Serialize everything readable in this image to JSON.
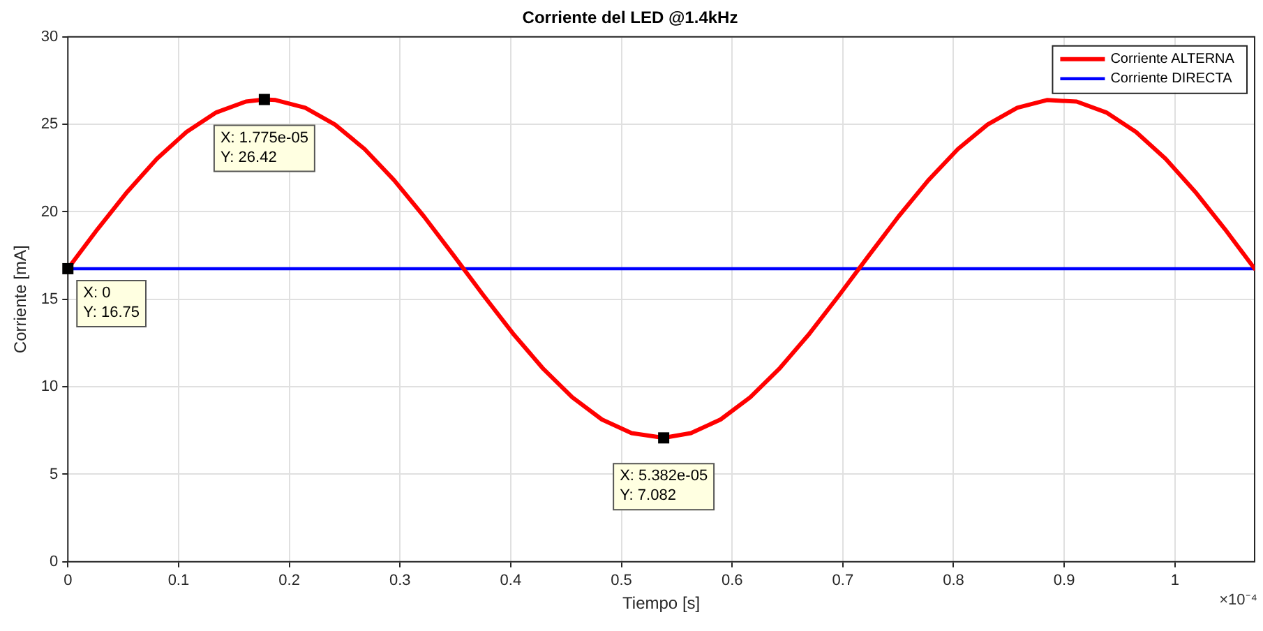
{
  "chart_data": {
    "type": "line",
    "title": "Corriente del LED @1.4kHz",
    "xlabel": "Tiempo [s]",
    "ylabel": "Corriente [mA]",
    "xlim": [
      0,
      1.072
    ],
    "ylim": [
      0,
      30
    ],
    "xticks": [
      0,
      0.1,
      0.2,
      0.3,
      0.4,
      0.5,
      0.6,
      0.7,
      0.8,
      0.9,
      1
    ],
    "yticks": [
      0,
      5,
      10,
      15,
      20,
      25,
      30
    ],
    "grid": true,
    "legend": "top right",
    "marker": "none",
    "line_style": "solid",
    "series": [
      {
        "name": "Corriente ALTERNA",
        "color": "#ff0000",
        "x": [
          0,
          0.0268,
          0.0536,
          0.0804,
          0.1072,
          0.134,
          0.1608,
          0.1775,
          0.1876,
          0.2144,
          0.2412,
          0.268,
          0.2948,
          0.3216,
          0.3484,
          0.3752,
          0.402,
          0.4288,
          0.4556,
          0.4824,
          0.5092,
          0.5382,
          0.5628,
          0.5896,
          0.6164,
          0.6432,
          0.67,
          0.6968,
          0.7236,
          0.7504,
          0.7772,
          0.804,
          0.8308,
          0.8576,
          0.8844,
          0.9112,
          0.938,
          0.9648,
          0.9916,
          1.0184,
          1.0452,
          1.072
        ],
        "values": [
          16.75,
          19.01,
          21.14,
          23.03,
          24.57,
          25.68,
          26.3,
          26.42,
          26.39,
          25.95,
          24.99,
          23.59,
          21.8,
          19.74,
          17.51,
          15.24,
          13.05,
          11.07,
          9.4,
          8.13,
          7.35,
          7.08,
          7.35,
          8.13,
          9.4,
          11.07,
          13.05,
          15.24,
          17.51,
          19.74,
          21.8,
          23.59,
          24.99,
          25.95,
          26.39,
          26.3,
          25.68,
          24.57,
          23.03,
          21.14,
          19.01,
          16.75
        ]
      },
      {
        "name": "Corriente DIRECTA",
        "color": "#0000ff",
        "x": [
          0,
          1.072
        ],
        "values": [
          16.75,
          16.75
        ]
      }
    ],
    "annotations": [
      {
        "text": "X: 1.775e-05\nY: 26.42",
        "x": 0.1775,
        "y": 26.42
      },
      {
        "text": "X: 0\nY: 16.75",
        "x": 0,
        "y": 16.75
      },
      {
        "text": "X: 5.382e-05\nY: 7.082",
        "x": 0.5382,
        "y": 7.08
      },
      "×10⁻⁴"
    ]
  }
}
